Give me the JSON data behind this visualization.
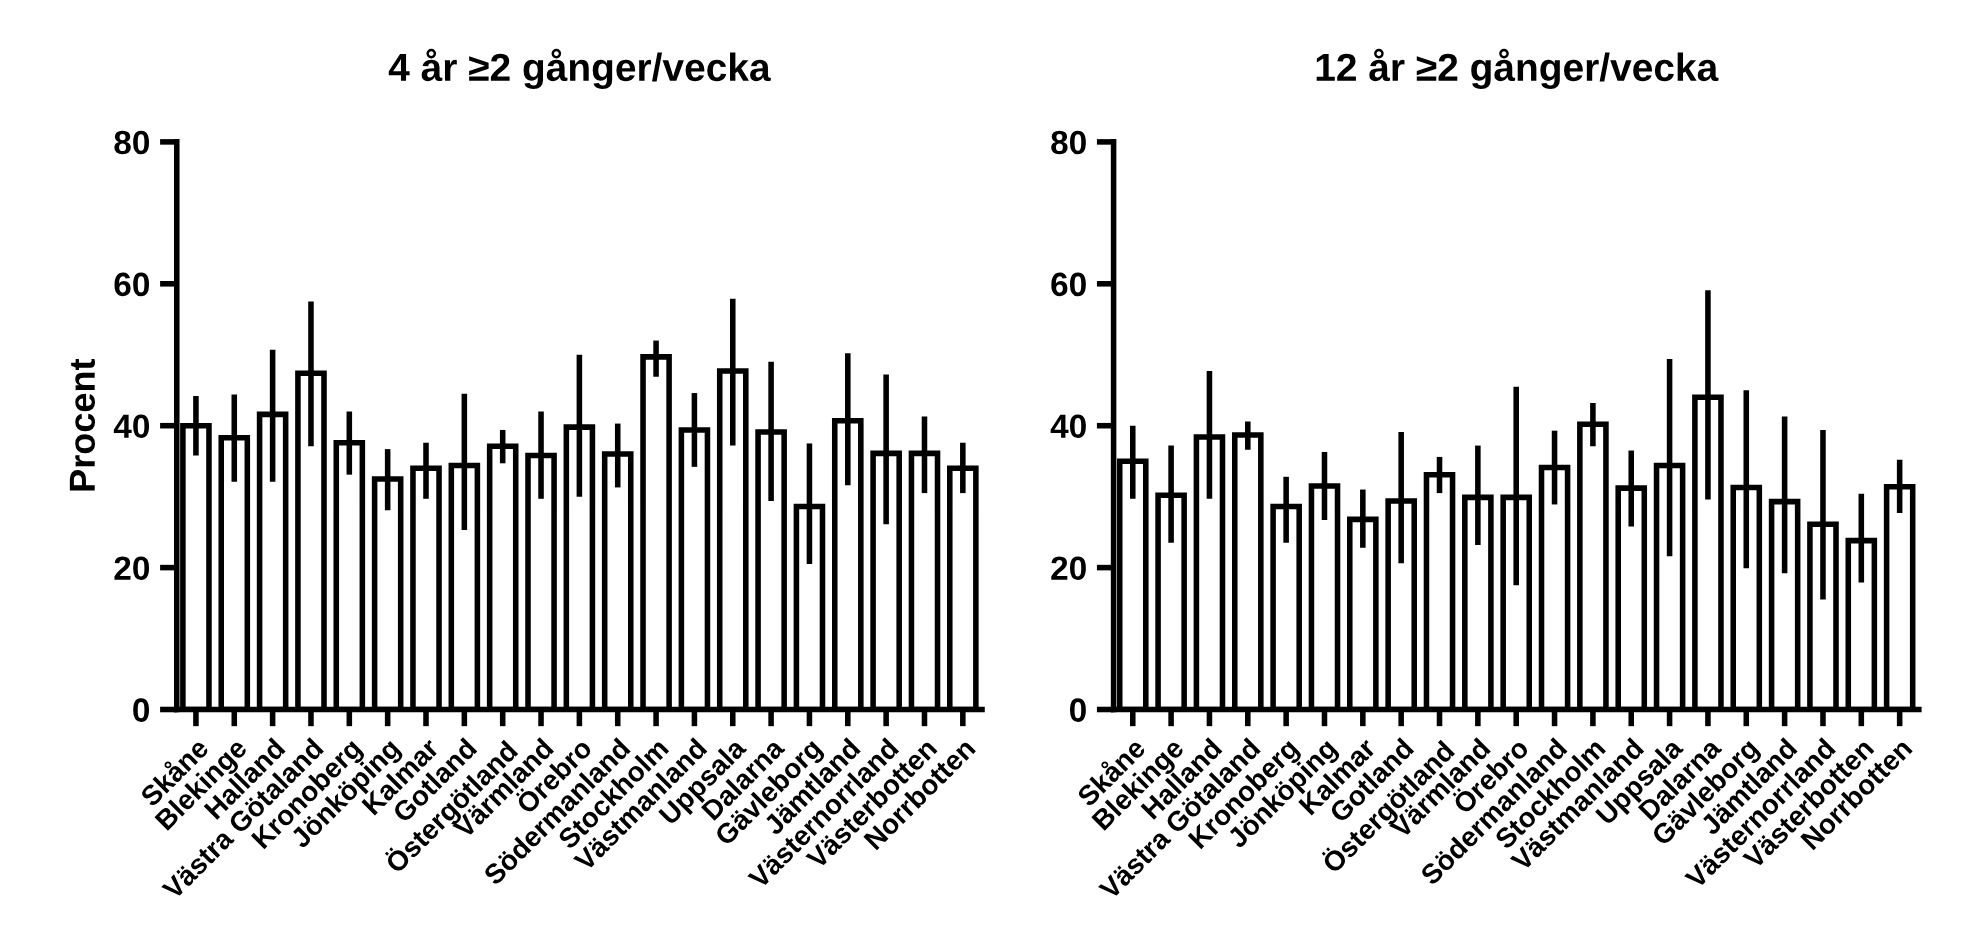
{
  "chart_data": [
    {
      "type": "bar",
      "title": "4 år ≥2 gånger/vecka",
      "ylabel": "Procent",
      "categories": [
        "Skåne",
        "Blekinge",
        "Halland",
        "Västra Götaland",
        "Kronoberg",
        "Jönköping",
        "Kalmar",
        "Gotland",
        "Östergötland",
        "Värmland",
        "Örebro",
        "Södermanland",
        "Stockholm",
        "Västmanland",
        "Uppsala",
        "Dalarna",
        "Gävleborg",
        "Jämtland",
        "Västernorrland",
        "Västerbotten",
        "Norrbotten"
      ],
      "series": [
        {
          "color": "#ffffff",
          "values": [
            40,
            38.3,
            41.6,
            47.4,
            37.6,
            32.5,
            34,
            34.4,
            37.1,
            35.8,
            39.8,
            36,
            49.7,
            39.4,
            47.7,
            39.1,
            28.6,
            40.7,
            36.1,
            36.1,
            34
          ],
          "errors": [
            [
              35.8,
              44.2
            ],
            [
              32.1,
              44.4
            ],
            [
              32.1,
              50.7
            ],
            [
              37.1,
              57.5
            ],
            [
              33.1,
              42
            ],
            [
              28.1,
              36.7
            ],
            [
              29.7,
              37.6
            ],
            [
              25.3,
              44.5
            ],
            [
              34.7,
              39.4
            ],
            [
              29.7,
              42
            ],
            [
              30,
              50
            ],
            [
              31.3,
              40.3
            ],
            [
              46.9,
              52
            ],
            [
              34.2,
              44.6
            ],
            [
              37.2,
              57.9
            ],
            [
              29.4,
              49
            ],
            [
              20.5,
              37.5
            ],
            [
              31.6,
              50.2
            ],
            [
              26.1,
              47.2
            ],
            [
              30.5,
              41.3
            ],
            [
              30.5,
              37.6
            ]
          ]
        }
      ],
      "ylim": [
        0,
        80
      ],
      "yticks": [
        0,
        20,
        40,
        60,
        80
      ],
      "grid": false
    },
    {
      "type": "bar",
      "title": "12 år ≥2 gånger/vecka",
      "categories": [
        "Skåne",
        "Blekinge",
        "Halland",
        "Västra Götaland",
        "Kronoberg",
        "Jönköping",
        "Kalmar",
        "Gotland",
        "Östergötland",
        "Värmland",
        "Örebro",
        "Södermanland",
        "Stockholm",
        "Västmanland",
        "Uppsala",
        "Dalarna",
        "Gävleborg",
        "Jämtland",
        "Västernorrland",
        "Västerbotten",
        "Norrbotten"
      ],
      "series": [
        {
          "color": "#ffffff",
          "values": [
            35,
            30.2,
            38.4,
            38.7,
            28.6,
            31.5,
            26.8,
            29.4,
            33.1,
            29.9,
            29.9,
            34.1,
            40.2,
            31.2,
            34.4,
            44,
            31.3,
            29.3,
            26.1,
            23.8,
            31.4
          ],
          "errors": [
            [
              29.7,
              40
            ],
            [
              23.5,
              37.2
            ],
            [
              29.7,
              47.7
            ],
            [
              36.6,
              40.6
            ],
            [
              23.5,
              32.8
            ],
            [
              26.7,
              36.3
            ],
            [
              22.8,
              31
            ],
            [
              20.6,
              39.1
            ],
            [
              30.5,
              35.6
            ],
            [
              23.2,
              37.2
            ],
            [
              17.5,
              45.5
            ],
            [
              28.9,
              39.3
            ],
            [
              37.1,
              43.2
            ],
            [
              25.8,
              36.5
            ],
            [
              21.6,
              49.4
            ],
            [
              29.6,
              59.1
            ],
            [
              19.9,
              45
            ],
            [
              19.2,
              41.3
            ],
            [
              15.5,
              39.4
            ],
            [
              17.9,
              30.4
            ],
            [
              27.7,
              35.2
            ]
          ]
        }
      ],
      "ylim": [
        0,
        80
      ],
      "yticks": [
        0,
        20,
        40,
        60,
        80
      ],
      "grid": false
    }
  ]
}
